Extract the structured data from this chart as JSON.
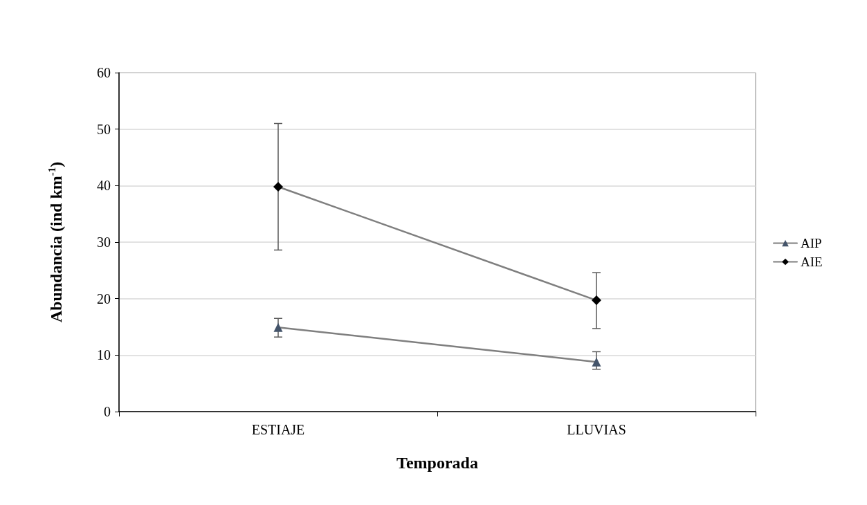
{
  "chart_data": {
    "type": "line",
    "xlabel": "Temporada",
    "ylabel": "Abundancia (ind km$^{-1}$)",
    "categories": [
      "ESTIAJE",
      "LLUVIAS"
    ],
    "series": [
      {
        "name": "AIP",
        "color": "#44546a",
        "marker": "triangle",
        "values": [
          14.9,
          8.8
        ],
        "errors": [
          [
            13.2,
            16.5
          ],
          [
            7.5,
            10.6
          ]
        ]
      },
      {
        "name": "AIE",
        "color": "#000000",
        "marker": "diamond",
        "values": [
          39.8,
          19.7
        ],
        "errors": [
          [
            28.6,
            51.0
          ],
          [
            14.7,
            24.6
          ]
        ]
      }
    ],
    "ylim": [
      0,
      60
    ],
    "yticks": [
      0,
      10,
      20,
      30,
      40,
      50,
      60
    ],
    "grid": "y",
    "legend": "right",
    "line_style": "solid"
  }
}
